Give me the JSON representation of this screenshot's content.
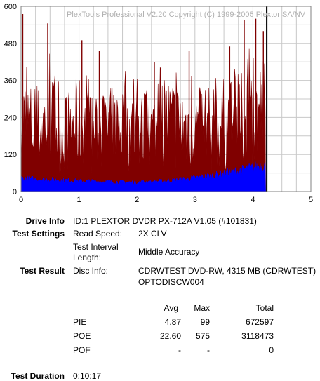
{
  "chart": {
    "watermark": "PlexTools Professional V2.20 Copyright (C) 1999-2005 Plextor SA/NV",
    "colors": {
      "background": "#ffffff",
      "grid": "#c8c8c8",
      "frame": "#808080",
      "pie": "#0000ff",
      "poe": "#800000",
      "end_marker": "#000000"
    }
  },
  "chart_data": {
    "type": "area",
    "title": "",
    "xlabel": "",
    "ylabel": "",
    "xlim": [
      0,
      5
    ],
    "ylim": [
      0,
      600
    ],
    "x_ticks": [
      "0",
      "1",
      "2",
      "3",
      "4",
      "5"
    ],
    "y_ticks": [
      "0",
      "120",
      "240",
      "360",
      "480",
      "600"
    ],
    "grid": true,
    "end_x": 4.22,
    "series": [
      {
        "role": "poe",
        "x": [
          0,
          0.25,
          0.5,
          0.75,
          1.0,
          1.25,
          1.5,
          1.75,
          2.0,
          2.25,
          2.5,
          2.75,
          3.0,
          3.25,
          3.5,
          3.75,
          4.0,
          4.22
        ],
        "values": [
          400,
          340,
          390,
          320,
          380,
          310,
          330,
          370,
          340,
          320,
          390,
          360,
          350,
          340,
          370,
          380,
          420,
          460
        ],
        "peaks": [
          [
            0.03,
            575
          ],
          [
            0.46,
            545
          ],
          [
            1.05,
            490
          ],
          [
            1.35,
            455
          ],
          [
            2.3,
            420
          ],
          [
            2.9,
            455
          ],
          [
            3.6,
            470
          ],
          [
            3.85,
            555
          ],
          [
            4.05,
            560
          ],
          [
            4.18,
            520
          ]
        ]
      },
      {
        "role": "pie",
        "x": [
          0,
          0.25,
          0.5,
          0.75,
          1.0,
          1.25,
          1.5,
          1.75,
          2.0,
          2.25,
          2.5,
          2.75,
          3.0,
          3.25,
          3.5,
          3.75,
          4.0,
          4.22
        ],
        "values": [
          45,
          42,
          40,
          38,
          36,
          34,
          33,
          32,
          31,
          33,
          36,
          40,
          45,
          52,
          60,
          70,
          80,
          90
        ]
      }
    ]
  },
  "info": {
    "drive_label": "Drive Info",
    "drive_value": "ID:1 PLEXTOR DVDR PX-712A V1.05 (#101831)",
    "settings_label": "Test Settings",
    "read_speed_label": "Read Speed:",
    "read_speed_value": "2X CLV",
    "interval_label_1": "Test Interval",
    "interval_label_2": "Length:",
    "interval_value": "Middle Accuracy",
    "result_label": "Test Result",
    "disc_info_label": "Disc Info:",
    "disc_info_value_1": "CDRWTEST DVD-RW, 4315 MB (CDRWTEST)",
    "disc_info_value_2": "OPTODISCW004",
    "duration_label": "Test Duration",
    "duration_value": "0:10:17"
  },
  "results": {
    "headers": {
      "avg": "Avg",
      "max": "Max",
      "total": "Total"
    },
    "rows": [
      {
        "name": "PIE",
        "avg": "4.87",
        "max": "99",
        "total": "672597"
      },
      {
        "name": "POE",
        "avg": "22.60",
        "max": "575",
        "total": "3118473"
      },
      {
        "name": "POF",
        "avg": "-",
        "max": "-",
        "total": "0"
      }
    ]
  }
}
